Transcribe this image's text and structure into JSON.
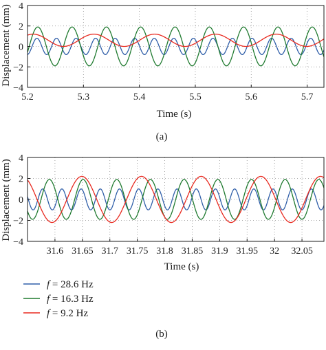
{
  "legend": {
    "items": [
      {
        "symbol": "f",
        "text": " = 28.6 Hz",
        "color": "#2f5ea8"
      },
      {
        "symbol": "f",
        "text": " = 16.3 Hz",
        "color": "#1f7a2f"
      },
      {
        "symbol": "f",
        "text": " = 9.2 Hz",
        "color": "#e8281e"
      }
    ]
  },
  "chart_data": [
    {
      "type": "line",
      "caption": "(a)",
      "xlabel": "Time (s)",
      "ylabel": "Displacement (mm)",
      "xlim": [
        5.2,
        5.73
      ],
      "ylim": [
        -4,
        4
      ],
      "xticks": [
        5.2,
        5.3,
        5.4,
        5.5,
        5.6,
        5.7
      ],
      "xtick_labels": [
        "5.2",
        "5.3",
        "5.4",
        "5.5",
        "5.6",
        "5.7"
      ],
      "yticks": [
        4,
        2,
        0,
        -2,
        -4
      ],
      "ytick_labels": [
        "4",
        "2",
        "0",
        "−2",
        "−4"
      ],
      "grid": "dotted",
      "series": [
        {
          "name": "f = 28.6 Hz",
          "color": "#2f5ea8",
          "freq_hz": 28.6,
          "amplitude_mm": 0.8,
          "offset_mm": 0.0,
          "phase_rad": 0.3
        },
        {
          "name": "f = 16.3 Hz",
          "color": "#1f7a2f",
          "freq_hz": 16.3,
          "amplitude_mm": 1.9,
          "offset_mm": 0.0,
          "phase_rad": 1.2
        },
        {
          "name": "f = 9.2 Hz",
          "color": "#e8281e",
          "freq_hz": 9.2,
          "amplitude_mm": 0.6,
          "offset_mm": 0.6,
          "phase_rad": 2.0
        }
      ]
    },
    {
      "type": "line",
      "caption": "(b)",
      "xlabel": "Time (s)",
      "ylabel": "Displacement (mm)",
      "xlim": [
        31.55,
        32.09
      ],
      "ylim": [
        -4,
        4
      ],
      "xticks": [
        31.6,
        31.65,
        31.7,
        31.75,
        31.8,
        31.85,
        31.9,
        31.95,
        32.0,
        32.05
      ],
      "xtick_labels": [
        "31.6",
        "31.65",
        "31.7",
        "31.75",
        "31.8",
        "31.85",
        "31.9",
        "31.95",
        "32",
        "32.05"
      ],
      "yticks": [
        4,
        2,
        0,
        -2,
        -4
      ],
      "ytick_labels": [
        "4",
        "2",
        "0",
        "−2",
        "−4"
      ],
      "grid": "dotted",
      "series": [
        {
          "name": "f = 28.6 Hz",
          "color": "#2f5ea8",
          "freq_hz": 28.6,
          "amplitude_mm": 1.0,
          "offset_mm": 0.0,
          "phase_rad": 0.8
        },
        {
          "name": "f = 16.3 Hz",
          "color": "#1f7a2f",
          "freq_hz": 16.3,
          "amplitude_mm": 1.9,
          "offset_mm": 0.0,
          "phase_rad": 2.1
        },
        {
          "name": "f = 9.2 Hz",
          "color": "#e8281e",
          "freq_hz": 9.2,
          "amplitude_mm": 2.2,
          "offset_mm": 0.0,
          "phase_rad": 0.5
        }
      ]
    }
  ]
}
